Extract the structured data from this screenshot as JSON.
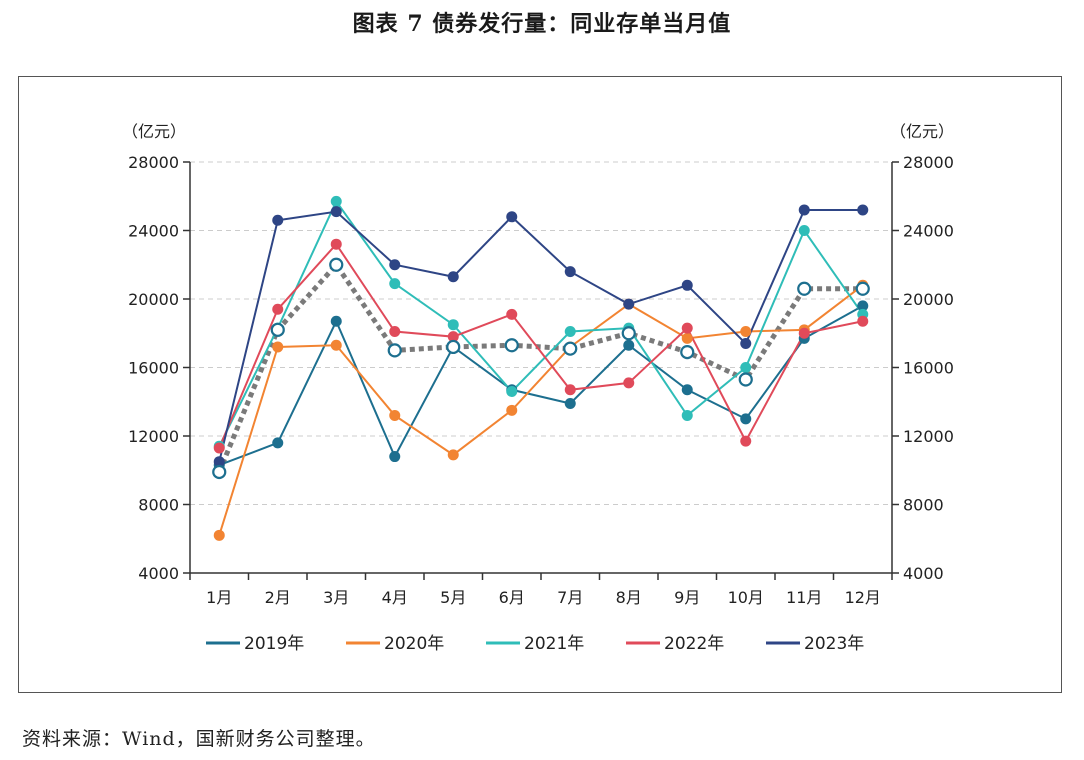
{
  "title": "图表 7 债券发行量：同业存单当月值",
  "source": "资料来源：Wind，国新财务公司整理。",
  "chart_data": {
    "type": "line",
    "categories": [
      "1月",
      "2月",
      "3月",
      "4月",
      "5月",
      "6月",
      "7月",
      "8月",
      "9月",
      "10月",
      "11月",
      "12月"
    ],
    "ylabel_left": "（亿元）",
    "ylabel_right": "（亿元）",
    "ylim": [
      4000,
      28000
    ],
    "yticks": [
      4000,
      8000,
      12000,
      16000,
      20000,
      24000,
      28000
    ],
    "ytick_labels": [
      "4000",
      "8000",
      "12000",
      "16000",
      "20000",
      "24000",
      "28000"
    ],
    "grid": true,
    "legend_position": "bottom",
    "series": [
      {
        "name": "2019年",
        "color": "#1d6f8f",
        "values": [
          10300,
          11600,
          18700,
          10800,
          17200,
          14700,
          13900,
          17300,
          14700,
          13000,
          17700,
          19600
        ]
      },
      {
        "name": "2020年",
        "color": "#f28432",
        "values": [
          6200,
          17200,
          17300,
          13200,
          10900,
          13500,
          17200,
          19700,
          17700,
          18100,
          18200,
          20800
        ]
      },
      {
        "name": "2021年",
        "color": "#2fbdb8",
        "values": [
          11400,
          18300,
          25700,
          20900,
          18500,
          14600,
          18100,
          18300,
          13200,
          16000,
          24000,
          19100
        ]
      },
      {
        "name": "2022年",
        "color": "#e04a5a",
        "values": [
          11300,
          19400,
          23200,
          18100,
          17800,
          19100,
          14700,
          15100,
          18300,
          11700,
          18000,
          18700
        ]
      },
      {
        "name": "2023年",
        "color": "#2e4585",
        "values": [
          10500,
          24600,
          25100,
          22000,
          21300,
          24800,
          21600,
          19700,
          20800,
          17400,
          25200,
          25200
        ]
      }
    ],
    "average_series": {
      "color": "#7a7a7a",
      "values": [
        9900,
        18200,
        22000,
        17000,
        17200,
        17300,
        17100,
        18000,
        16900,
        15300,
        20600,
        20600
      ]
    }
  }
}
